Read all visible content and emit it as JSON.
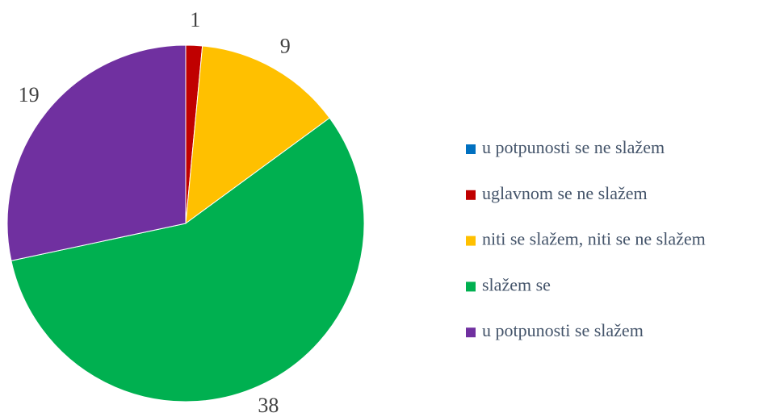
{
  "chart_data": {
    "type": "pie",
    "categories": [
      "u potpunosti se ne slažem",
      "uglavnom se ne slažem",
      "niti se slažem, niti se ne slažem",
      "slažem se",
      "u potpunosti se slažem"
    ],
    "values": [
      0,
      1,
      9,
      38,
      19
    ],
    "colors": [
      "#0070c0",
      "#c00000",
      "#ffc000",
      "#00b050",
      "#7030a0"
    ],
    "legend": "right"
  }
}
